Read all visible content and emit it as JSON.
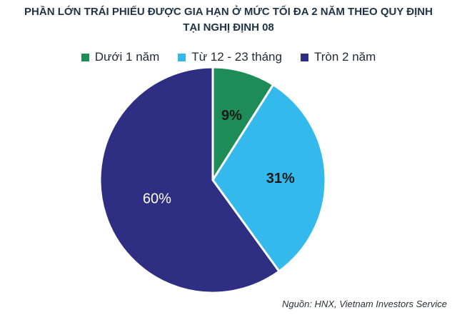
{
  "chart_data": {
    "type": "pie",
    "title_line1": "PHẦN LỚN TRÁI PHIẾU ĐƯỢC GIA HẠN Ở MỨC TỐI ĐA 2 NĂM THEO QUY ĐỊNH",
    "title_line2": "TẠI NGHỊ ĐỊNH 08",
    "categories": [
      "Dưới 1 năm",
      "Từ 12 - 23 tháng",
      "Tròn 2 năm"
    ],
    "values": [
      9,
      31,
      60
    ],
    "labels": [
      "9%",
      "31%",
      "60%"
    ],
    "colors": [
      "#1e8c57",
      "#33b9ec",
      "#2e2f83"
    ],
    "label_colors": [
      "#1a1a1a",
      "#1a1a1a",
      "#ffffff"
    ],
    "legend_position": "top"
  },
  "source": "Nguồn: HNX, Vietnam Investors Service"
}
